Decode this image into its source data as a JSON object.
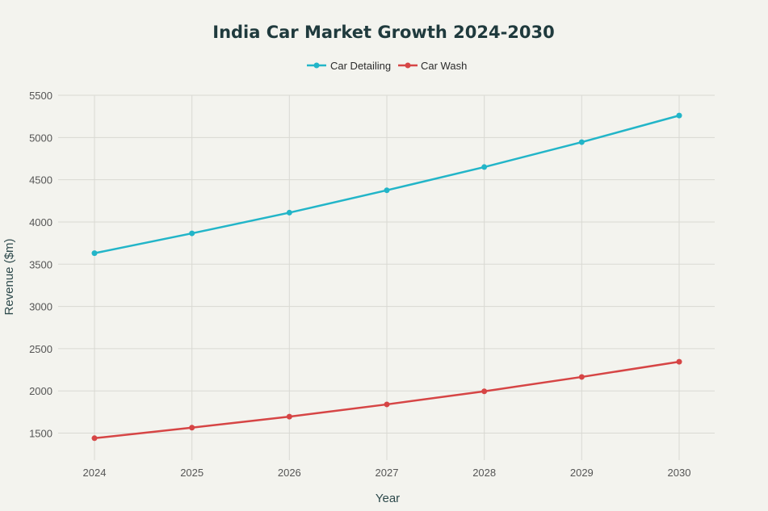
{
  "chart_data": {
    "type": "line",
    "title": "India Car Market Growth 2024-2030",
    "xlabel": "Year",
    "ylabel": "Revenue ($m)",
    "categories": [
      "2024",
      "2025",
      "2026",
      "2027",
      "2028",
      "2029",
      "2030"
    ],
    "yticks": [
      1500,
      2000,
      2500,
      3000,
      3500,
      4000,
      4500,
      5000,
      5500
    ],
    "ylim": [
      1180,
      5500
    ],
    "grid": true,
    "legend_position": "top-center",
    "series": [
      {
        "name": "Car Detailing",
        "color": "#22b5c8",
        "values": [
          3630,
          3865,
          4110,
          4375,
          4650,
          4945,
          5260
        ]
      },
      {
        "name": "Car Wash",
        "color": "#d64545",
        "values": [
          1440,
          1565,
          1695,
          1840,
          1995,
          2165,
          2345
        ]
      }
    ]
  }
}
